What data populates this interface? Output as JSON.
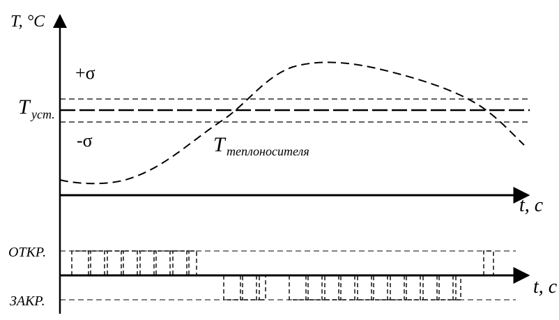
{
  "labels": {
    "temp_axis": "T, °C",
    "time_axis_top": "t, c",
    "time_axis_bottom": "t, c",
    "plus_sigma": "+σ",
    "minus_sigma": "-σ",
    "t_set_main": "T",
    "t_set_sub": "уст.",
    "t_coolant_main": "T",
    "t_coolant_sub": "теплоносителя",
    "open": "ОТКР.",
    "closed": "ЗАКР."
  },
  "colors": {
    "ink": "#000000",
    "background": "#ffffff"
  }
}
